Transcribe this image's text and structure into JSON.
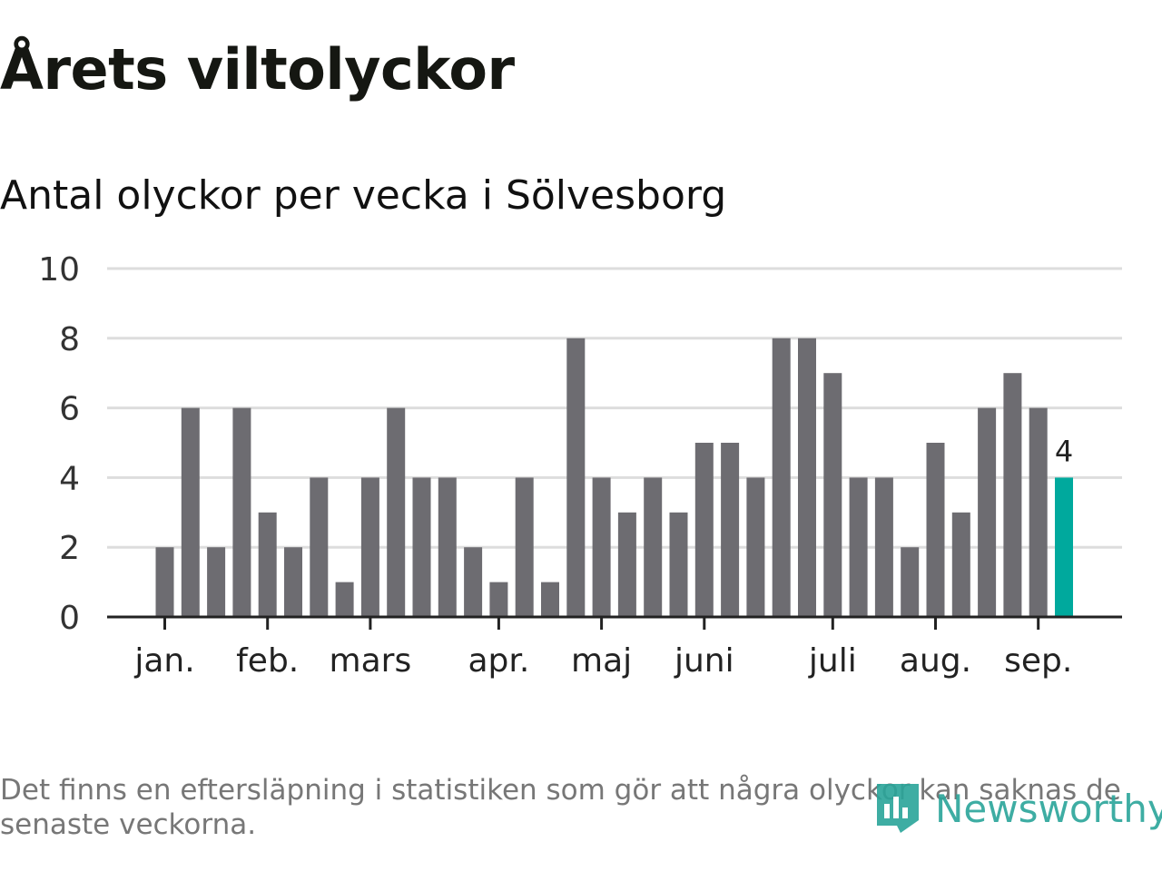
{
  "title": "Årets viltolyckor",
  "subtitle": "Antal olyckor per vecka i Sölvesborg",
  "footnote": "Det finns en eftersläpning i statistiken som gör att några olyckor kan saknas de senaste veckorna.",
  "brand": {
    "name": "Newsworthy",
    "icon": "newsworthy-logo-icon",
    "color": "#2aa59a"
  },
  "chart_data": {
    "type": "bar",
    "values": [
      2,
      6,
      2,
      6,
      3,
      2,
      4,
      1,
      4,
      6,
      4,
      4,
      2,
      1,
      4,
      1,
      8,
      4,
      3,
      4,
      3,
      5,
      5,
      4,
      8,
      8,
      7,
      4,
      4,
      2,
      5,
      3,
      6,
      7,
      6,
      4
    ],
    "highlight_last_label": "4",
    "yticks": [
      "0",
      "2",
      "4",
      "6",
      "8",
      "10"
    ],
    "ylim": [
      0,
      10
    ],
    "month_labels": [
      {
        "label": "jan.",
        "week": 1
      },
      {
        "label": "feb.",
        "week": 5
      },
      {
        "label": "mars",
        "week": 9
      },
      {
        "label": "apr.",
        "week": 14
      },
      {
        "label": "maj",
        "week": 18
      },
      {
        "label": "juni",
        "week": 22
      },
      {
        "label": "juli",
        "week": 27
      },
      {
        "label": "aug.",
        "week": 31
      },
      {
        "label": "sep.",
        "week": 35
      }
    ],
    "colors": {
      "bar": "#6d6c71",
      "highlight": "#00a99d",
      "grid": "#dddddd",
      "axis": "#222222"
    },
    "grid": true
  }
}
